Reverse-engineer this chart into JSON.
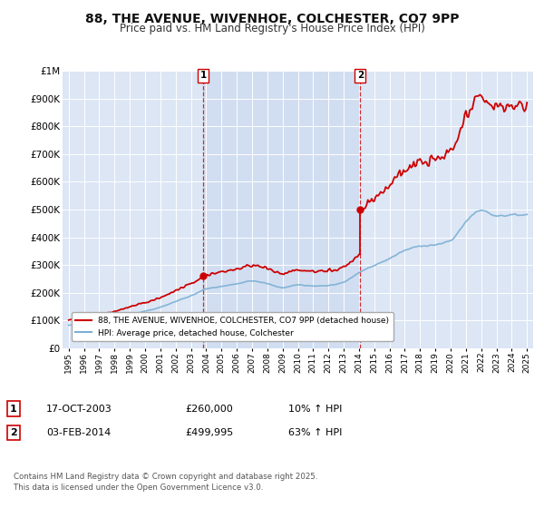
{
  "title": "88, THE AVENUE, WIVENHOE, COLCHESTER, CO7 9PP",
  "subtitle": "Price paid vs. HM Land Registry's House Price Index (HPI)",
  "title_fontsize": 10,
  "subtitle_fontsize": 8.5,
  "background_color": "#ffffff",
  "plot_bg_color": "#dce6f5",
  "plot_bg_between_color": "#c8d8ee",
  "grid_color": "#ffffff",
  "hpi_color": "#7bafd4",
  "property_color": "#cc0000",
  "sale1_date_x": 2003.8,
  "sale1_price": 260000,
  "sale2_date_x": 2014.08,
  "sale2_price": 499995,
  "ylim": [
    0,
    1000000
  ],
  "yticks": [
    0,
    100000,
    200000,
    300000,
    400000,
    500000,
    600000,
    700000,
    800000,
    900000,
    1000000
  ],
  "xlim_left": 1994.6,
  "xlim_right": 2025.4,
  "legend_property": "88, THE AVENUE, WIVENHOE, COLCHESTER, CO7 9PP (detached house)",
  "legend_hpi": "HPI: Average price, detached house, Colchester",
  "footer": "Contains HM Land Registry data © Crown copyright and database right 2025.\nThis data is licensed under the Open Government Licence v3.0.",
  "annotation1_label": "1",
  "annotation1_date": "17-OCT-2003",
  "annotation1_price": "£260,000",
  "annotation1_hpi": "10% ↑ HPI",
  "annotation2_label": "2",
  "annotation2_date": "03-FEB-2014",
  "annotation2_price": "£499,995",
  "annotation2_hpi": "63% ↑ HPI"
}
